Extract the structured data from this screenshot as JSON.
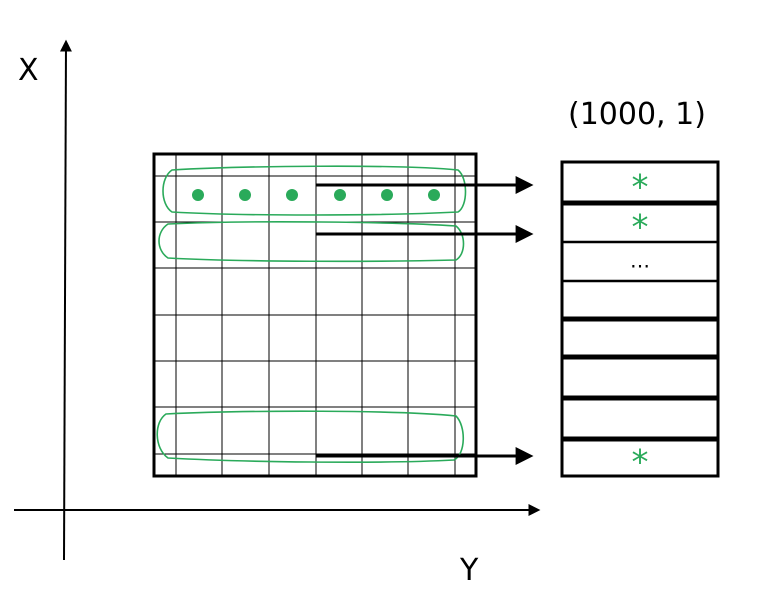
{
  "axes": {
    "vertical_label": "X",
    "horizontal_label": "Y"
  },
  "vector": {
    "shape_label": "(1000, 1)",
    "cell_marks": [
      "*",
      "*",
      "…",
      "",
      "",
      "",
      "",
      "*"
    ]
  },
  "grid": {
    "rows": 7,
    "cols": 7,
    "highlighted_rows": [
      0,
      1,
      6
    ],
    "dots_in_first_row": 6
  },
  "colors": {
    "accent": "#2aaa5a",
    "ink": "#000000",
    "grid_line": "#000000"
  }
}
